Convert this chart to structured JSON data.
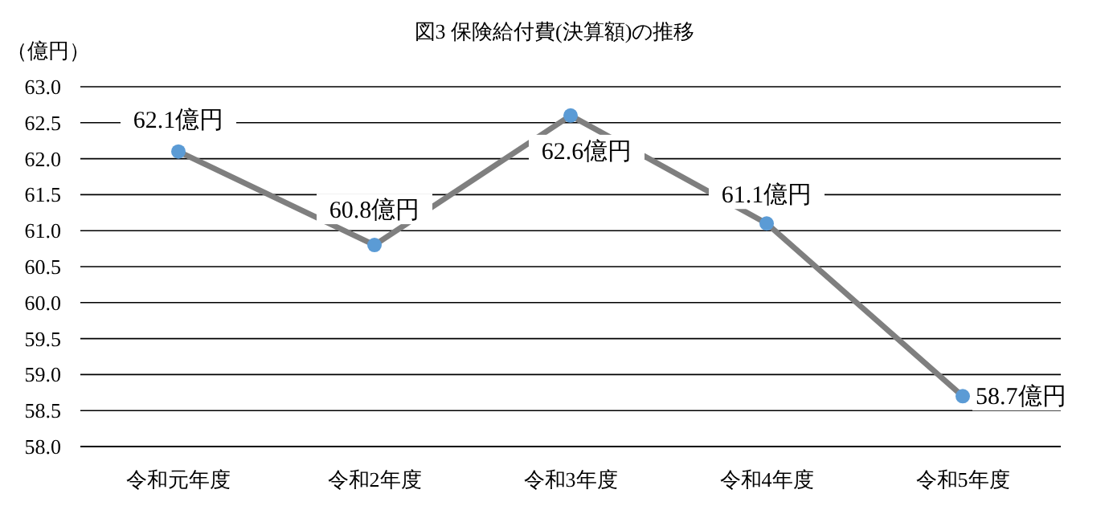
{
  "chart_data": {
    "type": "line",
    "title": "図3  保険給付費(決算額)の推移",
    "ylabel": "（億円）",
    "categories": [
      "令和元年度",
      "令和2年度",
      "令和3年度",
      "令和4年度",
      "令和5年度"
    ],
    "series": [
      {
        "color": "#7f7f7f",
        "colors": [
          "#5b9bd5",
          "#5b9bd5",
          "#5b9bd5",
          "#5b9bd5",
          "#5b9bd5"
        ],
        "values": [
          62.1,
          60.8,
          62.6,
          61.1,
          58.7
        ],
        "value_labels": [
          "62.1億円",
          "60.8億円",
          "62.6億円",
          "61.1億円",
          "58.7億円"
        ]
      }
    ],
    "ylim": [
      58.0,
      63.0
    ],
    "yticks": [
      {
        "value": 58,
        "label": "58.0"
      },
      {
        "value": 58.5,
        "label": "58.5"
      },
      {
        "value": 59,
        "label": "59.0"
      },
      {
        "value": 59.5,
        "label": "59.5"
      },
      {
        "value": 60,
        "label": "60.0"
      },
      {
        "value": 60.5,
        "label": "60.5"
      },
      {
        "value": 61,
        "label": "61.0"
      },
      {
        "value": 61.5,
        "label": "61.5"
      },
      {
        "value": 62,
        "label": "62.0"
      },
      {
        "value": 62.5,
        "label": "62.5"
      },
      {
        "value": 63,
        "label": "63.0"
      }
    ],
    "grid": "y",
    "marker": "circle",
    "line_style": "solid"
  }
}
